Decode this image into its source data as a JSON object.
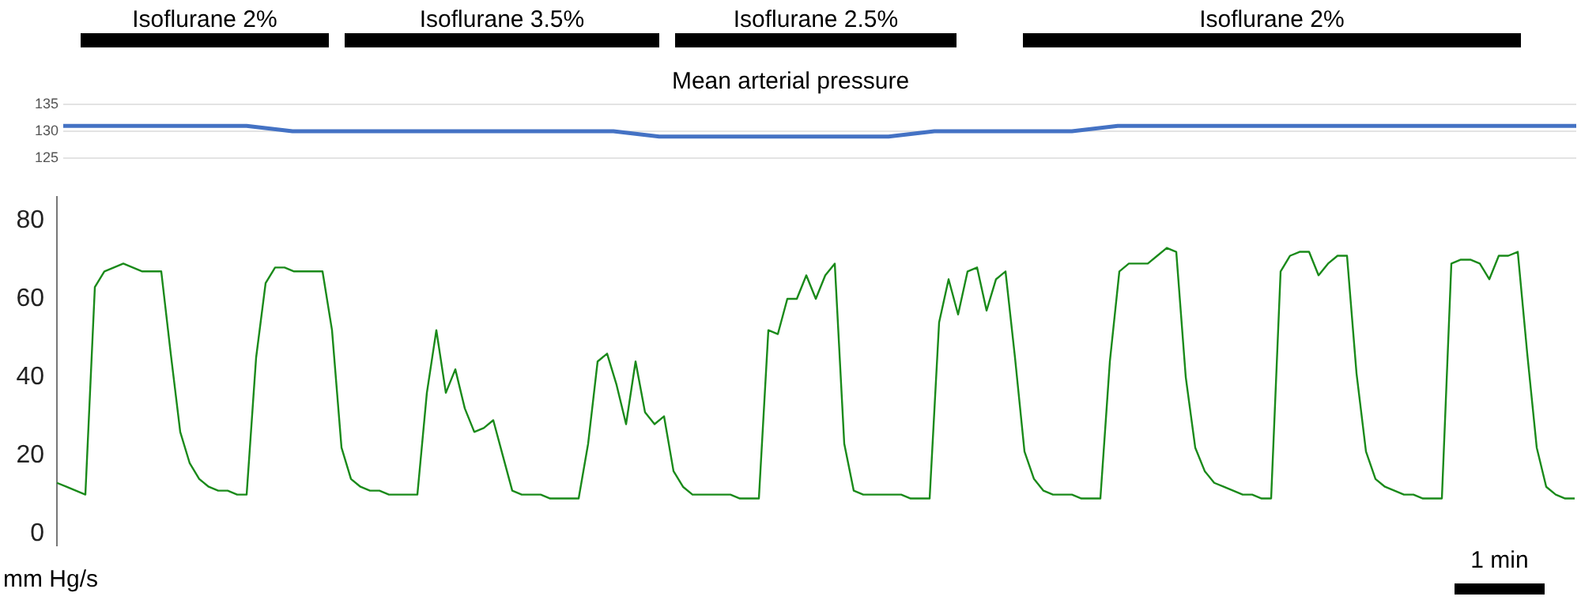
{
  "chart_data": [
    {
      "type": "line",
      "title": "Mean arterial pressure",
      "annotations": [
        "Isoflurane 2%",
        "Isoflurane 3.5%",
        "Isoflurane 2.5%",
        "Isoflurane 2%"
      ],
      "categories": [
        null,
        null,
        null,
        null,
        null,
        null,
        null,
        null,
        null,
        null,
        null,
        null,
        null,
        null,
        null,
        null,
        null,
        null,
        null,
        null,
        null,
        null,
        null,
        null,
        null,
        null,
        null,
        null,
        null,
        null,
        null,
        null,
        null,
        null
      ],
      "series": [
        {
          "color": "#4472c4",
          "values": [
            131,
            131,
            131,
            131,
            131,
            130,
            130,
            130,
            130,
            130,
            130,
            130,
            130,
            129,
            129,
            129,
            129,
            129,
            129,
            130,
            130,
            130,
            130,
            131,
            131,
            131,
            131,
            131,
            131,
            131,
            131,
            131,
            131,
            131
          ]
        }
      ],
      "ylim": [
        125,
        135
      ],
      "yticks": [
        125,
        130,
        135
      ],
      "grid": "y",
      "tick_labels": "y"
    },
    {
      "type": "line",
      "ylabel": "mm Hg/s",
      "annotations": [
        "1 min"
      ],
      "categories": [
        null,
        null,
        null,
        null,
        null,
        null,
        null,
        null,
        null,
        null,
        null,
        null,
        null,
        null,
        null,
        null,
        null,
        null,
        null,
        null,
        null,
        null,
        null,
        null,
        null,
        null,
        null,
        null,
        null,
        null,
        null,
        null,
        null,
        null,
        null,
        null,
        null,
        null,
        null,
        null,
        null,
        null,
        null,
        null,
        null,
        null,
        null,
        null,
        null,
        null,
        null,
        null,
        null,
        null,
        null,
        null,
        null,
        null,
        null,
        null,
        null,
        null,
        null,
        null,
        null,
        null,
        null,
        null,
        null,
        null,
        null,
        null,
        null,
        null,
        null,
        null,
        null,
        null,
        null,
        null,
        null,
        null,
        null,
        null,
        null,
        null,
        null,
        null,
        null,
        null,
        null,
        null,
        null,
        null,
        null,
        null,
        null,
        null,
        null,
        null,
        null,
        null,
        null,
        null,
        null,
        null,
        null,
        null,
        null,
        null,
        null,
        null,
        null,
        null,
        null,
        null,
        null,
        null,
        null,
        null,
        null,
        null,
        null,
        null,
        null,
        null,
        null,
        null,
        null,
        null,
        null,
        null,
        null,
        null,
        null,
        null,
        null,
        null,
        null,
        null,
        null,
        null,
        null,
        null,
        null,
        null,
        null,
        null,
        null,
        null,
        null,
        null,
        null,
        null,
        null,
        null,
        null,
        null,
        null,
        null,
        null
      ],
      "series": [
        {
          "color": "#1a8a1a",
          "values": [
            13,
            12,
            11,
            10,
            63,
            67,
            68,
            69,
            68,
            67,
            67,
            67,
            46,
            26,
            18,
            14,
            12,
            11,
            11,
            10,
            10,
            45,
            64,
            68,
            68,
            67,
            67,
            67,
            67,
            52,
            22,
            14,
            12,
            11,
            11,
            10,
            10,
            10,
            10,
            36,
            52,
            36,
            42,
            32,
            26,
            27,
            29,
            20,
            11,
            10,
            10,
            10,
            9,
            9,
            9,
            9,
            23,
            44,
            46,
            38,
            28,
            44,
            31,
            28,
            30,
            16,
            12,
            10,
            10,
            10,
            10,
            10,
            9,
            9,
            9,
            52,
            51,
            60,
            60,
            66,
            60,
            66,
            69,
            23,
            11,
            10,
            10,
            10,
            10,
            10,
            9,
            9,
            9,
            54,
            65,
            56,
            67,
            68,
            57,
            65,
            67,
            45,
            21,
            14,
            11,
            10,
            10,
            10,
            9,
            9,
            9,
            44,
            67,
            69,
            69,
            69,
            71,
            73,
            72,
            40,
            22,
            16,
            13,
            12,
            11,
            10,
            10,
            9,
            9,
            67,
            71,
            72,
            72,
            66,
            69,
            71,
            71,
            41,
            21,
            14,
            12,
            11,
            10,
            10,
            9,
            9,
            9,
            69,
            70,
            70,
            69,
            65,
            71,
            71,
            72,
            46,
            22,
            12,
            10,
            9,
            9
          ]
        }
      ],
      "ylim": [
        -3,
        86
      ],
      "yticks": [
        0,
        20,
        40,
        60,
        80
      ],
      "grid": false,
      "tick_labels": "y"
    }
  ]
}
